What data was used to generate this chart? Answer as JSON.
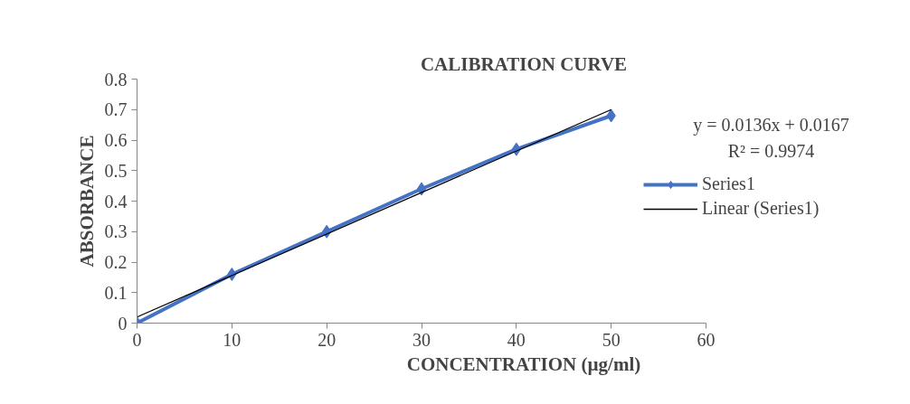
{
  "chart_data": {
    "type": "line",
    "title": "CALIBRATION CURVE",
    "xlabel": "CONCENTRATION (µg/ml)",
    "ylabel": "ABSORBANCE",
    "x": [
      0,
      10,
      20,
      30,
      40,
      50
    ],
    "series": [
      {
        "name": "Series1",
        "color": "#4472c4",
        "values": [
          0,
          0.16,
          0.3,
          0.44,
          0.57,
          0.68
        ],
        "marker": "diamond"
      },
      {
        "name": "Linear (Series1)",
        "color": "#000000",
        "type": "line",
        "x": [
          0,
          50
        ],
        "values": [
          0.02,
          0.7
        ],
        "marker": "none"
      }
    ],
    "annotations": [
      "y = 0.0136x + 0.0167",
      "R² = 0.9974"
    ],
    "xlim": [
      0,
      60
    ],
    "xticks": [
      0,
      10,
      20,
      30,
      40,
      50,
      60
    ],
    "ylim": [
      0,
      0.8
    ],
    "yticks": [
      0,
      0.1,
      0.2,
      0.3,
      0.4,
      0.5,
      0.6,
      0.7,
      0.8
    ],
    "grid": false,
    "legend": "right",
    "line_style": "solid"
  }
}
